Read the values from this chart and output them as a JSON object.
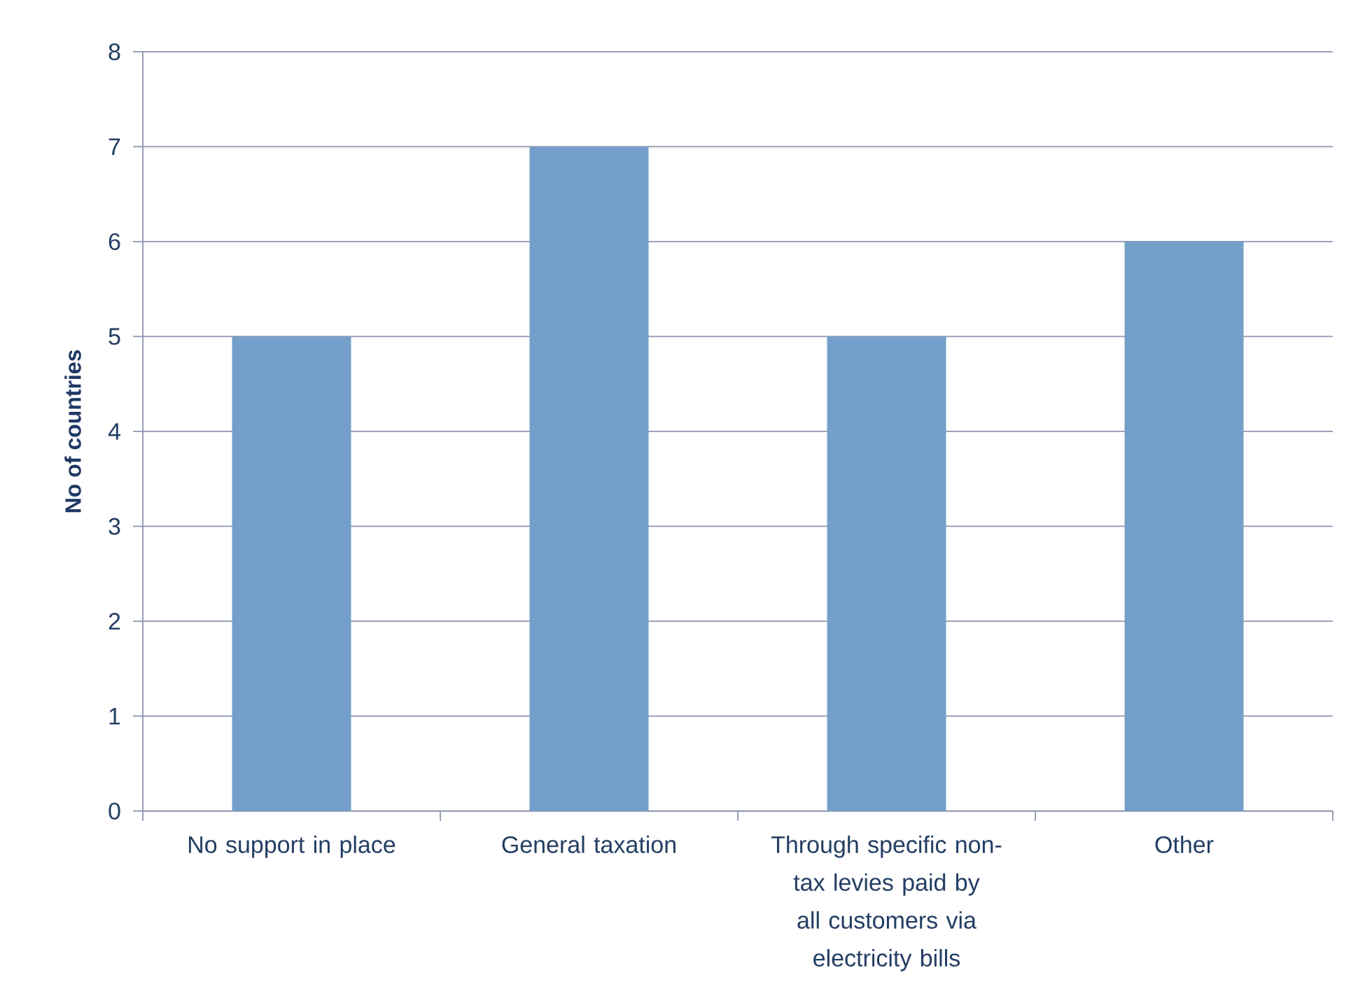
{
  "chart_data": {
    "type": "bar",
    "ylabel": "No of countries",
    "categories": [
      "No support in place",
      "General taxation",
      "Through specific non-tax levies paid by all customers via electricity bills",
      "Other"
    ],
    "values": [
      5,
      7,
      5,
      6
    ],
    "color": "#749fca",
    "ylim": [
      0,
      8
    ],
    "yticks": [
      0,
      1,
      2,
      3,
      4,
      5,
      6,
      7,
      8
    ],
    "grid": "y"
  }
}
